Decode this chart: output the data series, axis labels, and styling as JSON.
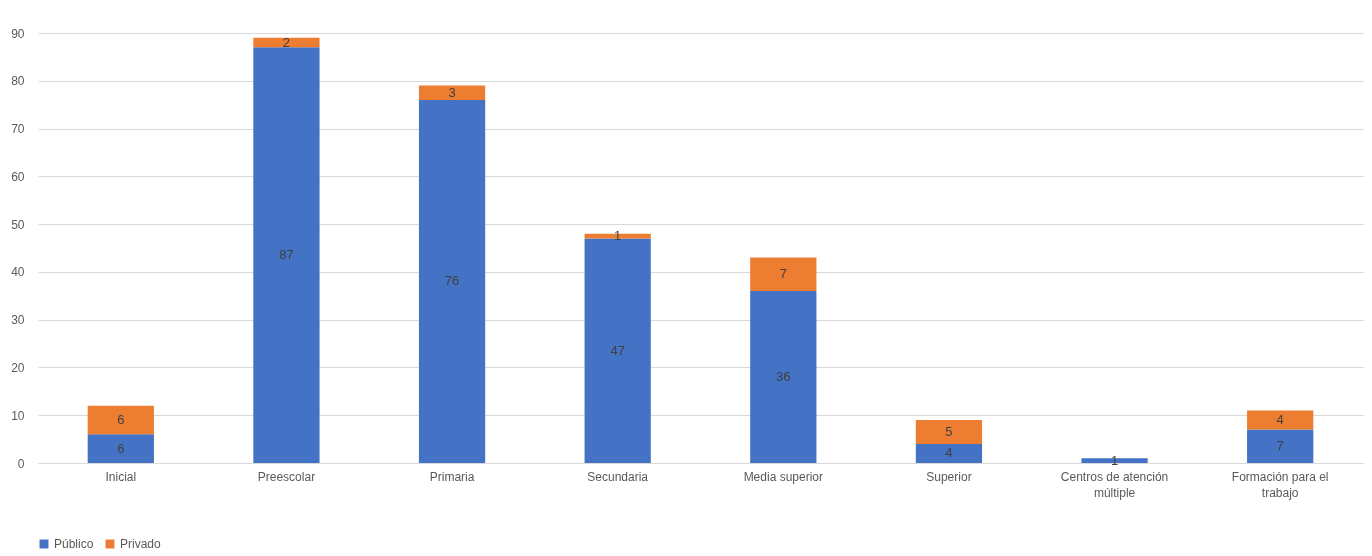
{
  "chart_data": {
    "type": "bar",
    "stacked": true,
    "categories": [
      "Inicial",
      "Preescolar",
      "Primaria",
      "Secundaria",
      "Media superior",
      "Superior",
      "Centros de atención múltiple",
      "Formación para el trabajo"
    ],
    "series": [
      {
        "name": "Público",
        "color": "#4472c4",
        "values": [
          6,
          87,
          76,
          47,
          36,
          4,
          1,
          7
        ]
      },
      {
        "name": "Privado",
        "color": "#ed7d31",
        "values": [
          6,
          2,
          3,
          1,
          7,
          5,
          null,
          4
        ]
      }
    ],
    "ylim": [
      0,
      90
    ],
    "yticks": [
      0,
      10,
      20,
      30,
      40,
      50,
      60,
      70,
      80,
      90
    ],
    "grid": "y",
    "legend": "bottom",
    "data_labels": true
  }
}
